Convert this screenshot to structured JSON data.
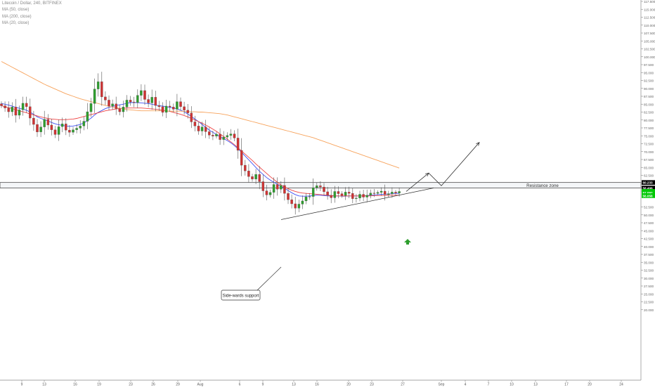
{
  "header": {
    "symbol_line": "Litecoin / Dollar, 240, BITFINEX",
    "indicators": [
      "MA (50, close)",
      "MA (200, close)",
      "MA (20, close)"
    ]
  },
  "chart_data": {
    "type": "candlestick",
    "title": "Litecoin / Dollar, 240, BITFINEX",
    "ylim": [
      17.5,
      120
    ],
    "y_ticks": [
      20,
      22.5,
      25,
      27.5,
      30,
      32.5,
      35,
      37.5,
      40,
      42.5,
      45,
      47.5,
      50,
      52.5,
      57.5,
      62.5,
      65,
      67.5,
      70,
      72.5,
      75,
      77.5,
      80,
      82.5,
      85,
      87.5,
      90,
      92.5,
      95,
      97.5,
      100,
      102.5,
      105,
      107.5,
      110,
      112.5,
      115,
      117.5
    ],
    "x_ticks": [
      "9",
      "13",
      "16",
      "19",
      "23",
      "26",
      "29",
      "Aug",
      "6",
      "9",
      "13",
      "16",
      "20",
      "23",
      "27",
      "Sep",
      "4",
      "7",
      "10",
      "13",
      "17",
      "20",
      "24"
    ],
    "price_labels": [
      {
        "text": "60.233",
        "value": 60.233,
        "color": "#000000"
      },
      {
        "text": "58.499",
        "value": 58.499,
        "color": "#000000"
      },
      {
        "text": "57.422",
        "value": 57.422,
        "color": "#00c805"
      },
      {
        "text": "57.092",
        "value": 57.092,
        "color": "#00c805"
      },
      {
        "text": "56.058",
        "value": 56.058,
        "color": "#00c805"
      }
    ],
    "series": [
      {
        "name": "Litecoin / Dollar",
        "kind": "ohlc",
        "close": [
          84.5,
          83.8,
          82.6,
          84.1,
          81.5,
          83.2,
          85.3,
          84.2,
          80.6,
          78.6,
          76.2,
          77.8,
          80.2,
          78.4,
          76.9,
          75.4,
          77.9,
          78.8,
          76.8,
          76.1,
          76.9,
          77.4,
          78.1,
          79.6,
          82.6,
          85.2,
          89.8,
          92.1,
          87.3,
          86.3,
          84.4,
          85.1,
          83.6,
          82.6,
          84.1,
          86.3,
          85.7,
          85.5,
          87.8,
          89.3,
          86.5,
          85.4,
          87.2,
          84.6,
          84.2,
          82.4,
          84.4,
          84.1,
          83.4,
          85.8,
          84.2,
          83.1,
          82.2,
          79.4,
          78.1,
          76.5,
          77.8,
          76.3,
          75.2,
          74.9,
          75.5,
          73.8,
          74.6,
          75.1,
          75.6,
          74.3,
          70.4,
          65.7,
          63.9,
          62.1,
          61.3,
          62.8,
          60.5,
          57.6,
          56.3,
          57.1,
          59.6,
          58.1,
          59.3,
          56.8,
          54.8,
          53.5,
          52.1,
          53.4,
          54.4,
          55.7,
          55.8,
          58.6,
          59.2,
          58.8,
          57.3,
          56.2,
          55.4,
          57.4,
          56.7,
          56.1,
          57.2,
          56.8,
          55.1,
          55.3,
          56.5,
          55.6,
          56.2,
          56.9,
          56.8,
          57.1,
          57.5,
          56.4,
          56.7,
          57.2,
          56.9,
          57.4
        ]
      },
      {
        "name": "MA (20, close)",
        "color": "#3f51f5",
        "values": [
          85.2,
          85.0,
          84.7,
          84.4,
          84.0,
          83.7,
          83.4,
          83.1,
          82.5,
          81.8,
          81.0,
          80.5,
          80.1,
          79.7,
          79.2,
          78.8,
          78.5,
          78.3,
          78.1,
          78.0,
          78.1,
          78.3,
          78.6,
          79.1,
          79.8,
          80.6,
          81.6,
          82.4,
          83.0,
          83.6,
          84.0,
          84.3,
          84.6,
          84.8,
          85.0,
          85.3,
          85.5,
          85.5,
          85.5,
          85.4,
          85.3,
          85.2,
          85.0,
          84.7,
          84.5,
          84.4,
          84.2,
          84.0,
          83.8,
          83.5,
          83.1,
          82.6,
          81.9,
          81.1,
          80.3,
          79.5,
          78.6,
          77.7,
          76.8,
          76.1,
          75.4,
          74.7,
          74.1,
          73.5,
          72.8,
          71.9,
          70.9,
          69.8,
          68.6,
          67.4,
          66.2,
          65.0,
          63.8,
          62.8,
          61.8,
          61.0,
          60.3,
          59.7,
          59.0,
          58.4,
          57.7,
          57.0,
          56.4,
          56.0,
          55.9,
          55.9,
          56.0,
          56.1,
          56.2,
          56.2,
          56.1,
          56.0,
          56.0,
          56.0,
          56.0,
          55.9,
          55.9,
          56.0,
          56.0,
          56.0,
          56.0,
          56.0,
          56.1,
          56.2,
          56.3,
          56.4,
          56.5,
          56.5,
          56.6,
          56.7,
          56.8,
          56.8
        ]
      },
      {
        "name": "MA (50, close)",
        "color": "#ef4444",
        "values": [
          84.5,
          84.2,
          83.9,
          83.6,
          83.3,
          82.9,
          82.6,
          82.3,
          81.9,
          81.6,
          81.3,
          81.0,
          80.7,
          80.5,
          80.3,
          80.2,
          80.1,
          80.1,
          80.1,
          80.2,
          80.3,
          80.5,
          80.8,
          81.1,
          81.4,
          81.7,
          82.0,
          82.3,
          82.6,
          82.9,
          83.1,
          83.3,
          83.5,
          83.6,
          83.7,
          83.8,
          83.8,
          83.8,
          83.8,
          83.8,
          83.7,
          83.6,
          83.5,
          83.4,
          83.3,
          83.1,
          82.9,
          82.7,
          82.4,
          82.1,
          81.8,
          81.4,
          81.0,
          80.5,
          80.0,
          79.5,
          79.0,
          78.4,
          77.8,
          77.1,
          76.4,
          75.6,
          74.8,
          74.0,
          73.1,
          72.2,
          71.2,
          70.2,
          69.2,
          68.2,
          67.2,
          66.1,
          65.1,
          64.1,
          63.1,
          62.1,
          61.2,
          60.3,
          59.4,
          58.8,
          58.3,
          57.8,
          57.4,
          57.1,
          56.9,
          56.8,
          56.7,
          56.6,
          56.5,
          56.4,
          56.3,
          56.2,
          56.1,
          56.0,
          56.0,
          56.0,
          56.0,
          56.0,
          56.0,
          56.0,
          56.0,
          56.0,
          56.0,
          56.0,
          56.1,
          56.1,
          56.1,
          56.1,
          56.2,
          56.2,
          56.2,
          56.2
        ]
      },
      {
        "name": "MA (200, close)",
        "color": "#f7a35c",
        "values": [
          98.5,
          97.9,
          97.3,
          96.7,
          96.1,
          95.5,
          94.9,
          94.3,
          93.7,
          93.1,
          92.5,
          91.9,
          91.3,
          90.8,
          90.3,
          89.8,
          89.3,
          88.8,
          88.3,
          87.9,
          87.5,
          87.1,
          86.7,
          86.4,
          86.1,
          85.8,
          85.5,
          85.2,
          84.9,
          84.6,
          84.3,
          84.1,
          83.9,
          83.7,
          83.5,
          83.3,
          83.2,
          83.1,
          83.0,
          82.9,
          82.9,
          82.9,
          82.9,
          82.9,
          82.9,
          82.9,
          82.9,
          82.8,
          82.8,
          82.8,
          82.8,
          82.7,
          82.7,
          82.6,
          82.6,
          82.5,
          82.5,
          82.4,
          82.3,
          82.2,
          82.1,
          82.0,
          81.8,
          81.6,
          81.3,
          81.0,
          80.7,
          80.4,
          80.1,
          79.8,
          79.5,
          79.2,
          78.9,
          78.6,
          78.3,
          78.0,
          77.7,
          77.4,
          77.1,
          76.8,
          76.5,
          76.2,
          75.9,
          75.6,
          75.3,
          75.0,
          74.7,
          74.4,
          74.0,
          73.6,
          73.2,
          72.8,
          72.4,
          72.0,
          71.6,
          71.2,
          70.8,
          70.4,
          70.0,
          69.6,
          69.2,
          68.8,
          68.4,
          68.0,
          67.6,
          67.2,
          66.8,
          66.4,
          66.0,
          65.6,
          65.2,
          64.8
        ]
      }
    ],
    "resistance_zone": {
      "label": "Resistance zone",
      "from": 58.499,
      "to": 60.233
    },
    "annotations": [
      {
        "type": "callout",
        "text": "Side-wards support"
      },
      {
        "type": "trend_line",
        "name": "ascending support",
        "from_price": 48.5,
        "to_price": 58.5
      },
      {
        "type": "projection",
        "name": "expected path",
        "prices": [
          57.4,
          63.2,
          59.2,
          72.9
        ]
      },
      {
        "type": "arrow_up",
        "color": "#2e9e2e"
      }
    ],
    "colors": {
      "up": "#2e9e2e",
      "down": "#d03232",
      "wick": "#555555"
    },
    "grid": false
  }
}
